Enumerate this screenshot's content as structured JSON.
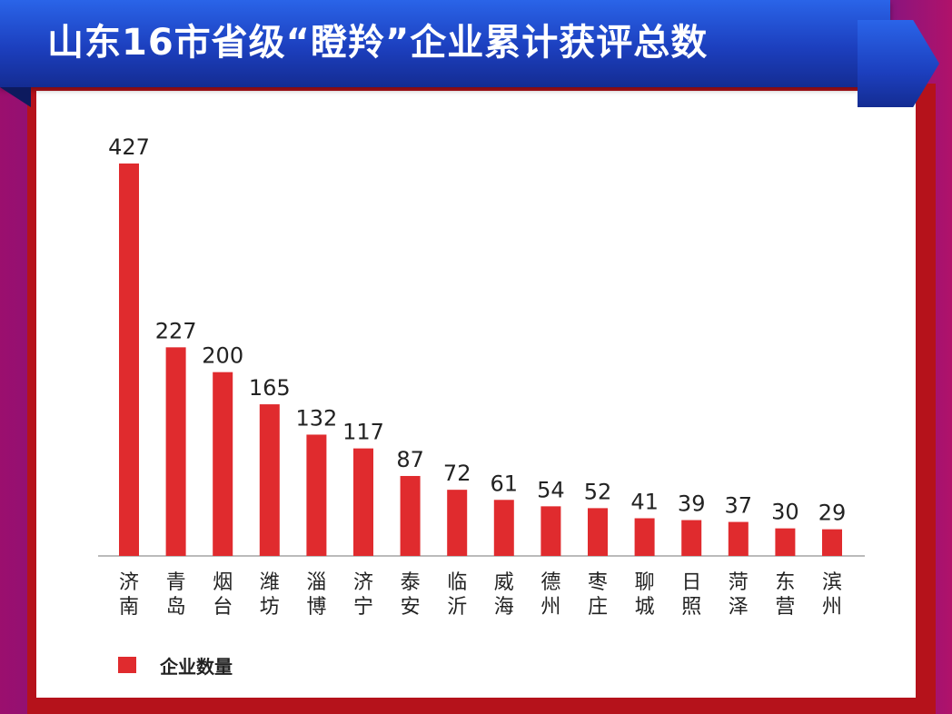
{
  "title": "山东16市省级“瞪羚”企业累计获评总数",
  "colors": {
    "bar": "#e02b2e",
    "axis": "#bbbbbb",
    "text": "#222222"
  },
  "chart_data": {
    "type": "bar",
    "title": "山东16市省级“瞪羚”企业累计获评总数",
    "categories": [
      "济南",
      "青岛",
      "烟台",
      "潍坊",
      "淄博",
      "济宁",
      "泰安",
      "临沂",
      "威海",
      "德州",
      "枣庄",
      "聊城",
      "日照",
      "菏泽",
      "东营",
      "滨州"
    ],
    "series": [
      {
        "name": "企业数量",
        "values": [
          427,
          227,
          200,
          165,
          132,
          117,
          87,
          72,
          61,
          54,
          52,
          41,
          39,
          37,
          30,
          29
        ]
      }
    ],
    "xlabel": "",
    "ylabel": "",
    "ylim": [
      0,
      427
    ],
    "grid": false,
    "legend": "bottom-left",
    "data_labels": true
  }
}
